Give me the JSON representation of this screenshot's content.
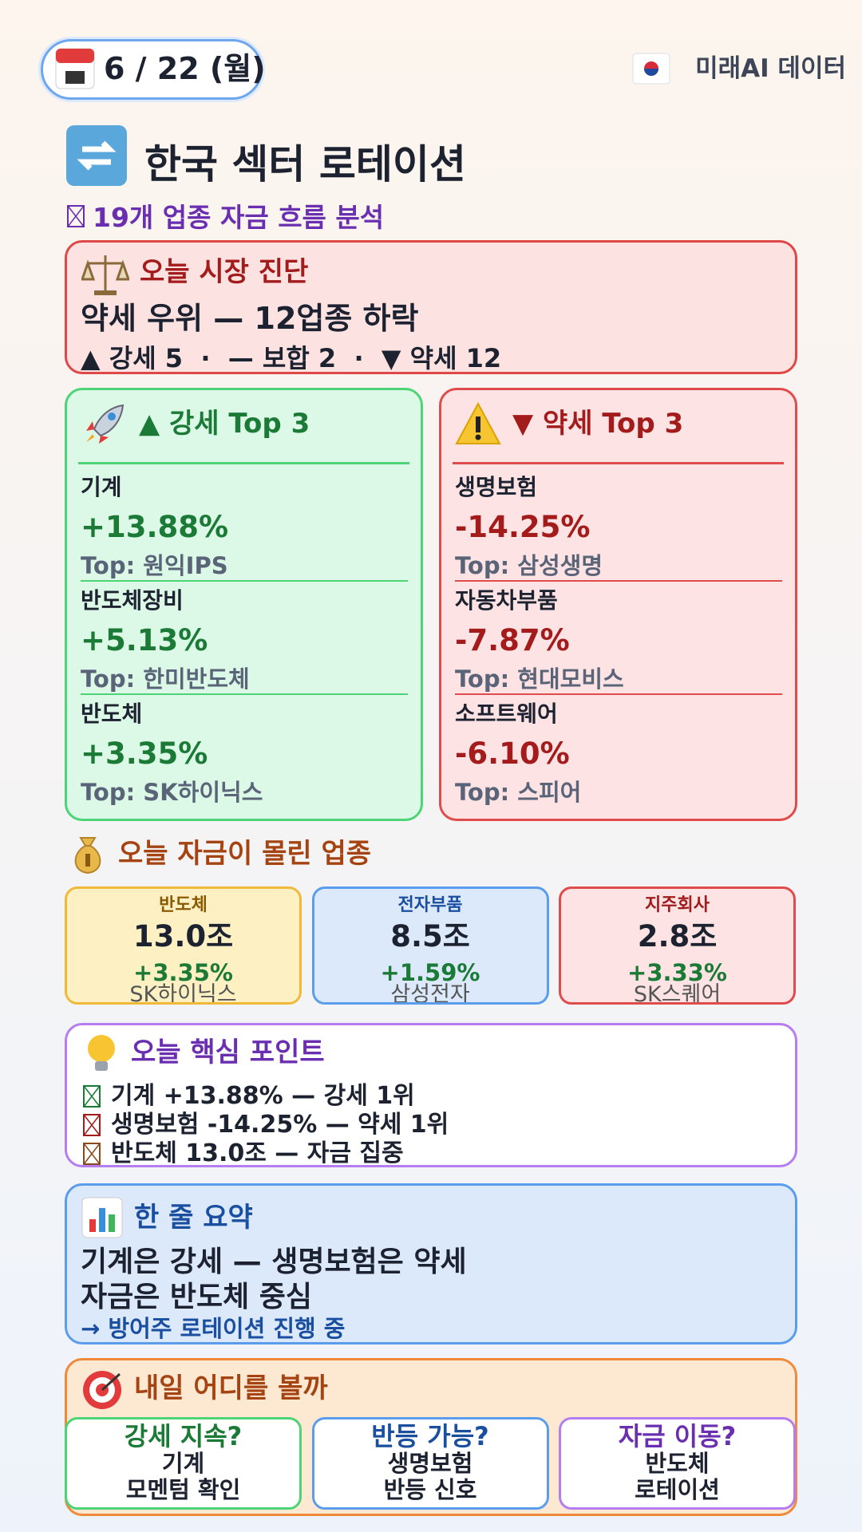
{
  "header": {
    "date": "6 / 22 (월)",
    "brand": "미래AI 데이터"
  },
  "title": "한국 섹터 로테이션",
  "subtitle": "19개 업종 자금 흐름 분석",
  "diagnosis": {
    "heading": "오늘 시장 진단",
    "headline": "약세 우위 — 12업종 하락",
    "stats": "▲ 강세 5  ·  — 보합 2  ·  ▼ 약세 12"
  },
  "strong_top3": {
    "heading": "▲ 강세 Top 3",
    "items": [
      {
        "sector": "기계",
        "change": "+13.88%",
        "top": "Top: 원익IPS"
      },
      {
        "sector": "반도체장비",
        "change": "+5.13%",
        "top": "Top: 한미반도체"
      },
      {
        "sector": "반도체",
        "change": "+3.35%",
        "top": "Top: SK하이닉스"
      }
    ]
  },
  "weak_top3": {
    "heading": "▼ 약세 Top 3",
    "items": [
      {
        "sector": "생명보험",
        "change": "-14.25%",
        "top": "Top: 삼성생명"
      },
      {
        "sector": "자동차부품",
        "change": "-7.87%",
        "top": "Top: 현대모비스"
      },
      {
        "sector": "소프트웨어",
        "change": "-6.10%",
        "top": "Top: 스피어"
      }
    ]
  },
  "money_flow": {
    "heading": "오늘 자금이 몰린 업종",
    "cards": [
      {
        "sector": "반도체",
        "amount": "13.0조",
        "change": "+3.35%",
        "stock": "SK하이닉스"
      },
      {
        "sector": "전자부품",
        "amount": "8.5조",
        "change": "+1.59%",
        "stock": "삼성전자"
      },
      {
        "sector": "지주회사",
        "amount": "2.8조",
        "change": "+3.33%",
        "stock": "SK스퀘어"
      }
    ]
  },
  "key_points": {
    "heading": "오늘 핵심 포인트",
    "items": [
      "기계 +13.88% — 강세 1위",
      "생명보험 -14.25% — 약세 1위",
      "반도체 13.0조 — 자금 집중"
    ]
  },
  "summary": {
    "heading": "한 줄 요약",
    "lines": [
      "기계은 강세 — 생명보험은 약세",
      "자금은 반도체 중심"
    ],
    "note": "→ 방어주 로테이션 진행 중"
  },
  "tomorrow": {
    "heading": "내일 어디를 볼까",
    "cards": [
      {
        "question": "강세 지속?",
        "lines": [
          "기계",
          "모멘텀 확인"
        ]
      },
      {
        "question": "반등 가능?",
        "lines": [
          "생명보험",
          "반등 신호"
        ]
      },
      {
        "question": "자금 이동?",
        "lines": [
          "반도체",
          "로테이션"
        ]
      }
    ]
  }
}
